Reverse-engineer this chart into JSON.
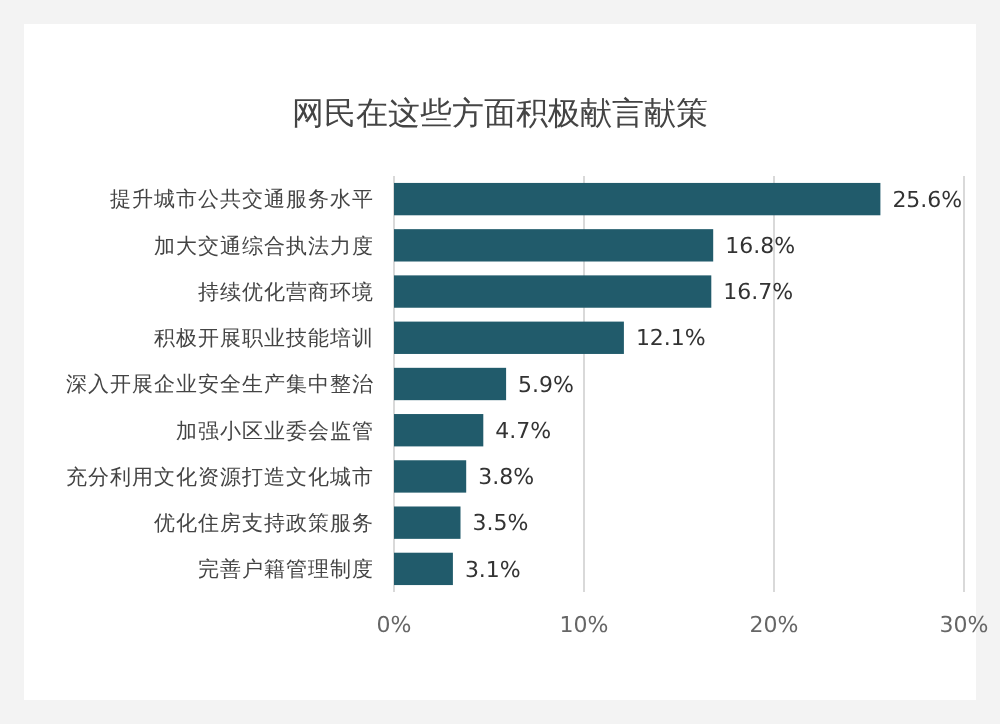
{
  "chart_data": {
    "type": "bar",
    "orientation": "horizontal",
    "title": "网民在这些方面积极献言献策",
    "categories": [
      "提升城市公共交通服务水平",
      "加大交通综合执法力度",
      "持续优化营商环境",
      "积极开展职业技能培训",
      "深入开展企业安全生产集中整治",
      "加强小区业委会监管",
      "充分利用文化资源打造文化城市",
      "优化住房支持政策服务",
      "完善户籍管理制度"
    ],
    "values": [
      25.6,
      16.8,
      16.7,
      12.1,
      5.9,
      4.7,
      3.8,
      3.5,
      3.1
    ],
    "value_labels": [
      "25.6%",
      "16.8%",
      "16.7%",
      "12.1%",
      "5.9%",
      "4.7%",
      "3.8%",
      "3.5%",
      "3.1%"
    ],
    "color": "#215b6b",
    "xlim": [
      0,
      30
    ],
    "xticks": [
      {
        "value": 0,
        "label": "0%"
      },
      {
        "value": 10,
        "label": "10%"
      },
      {
        "value": 20,
        "label": "20%"
      },
      {
        "value": 30,
        "label": "30%"
      }
    ],
    "grid": "x"
  }
}
